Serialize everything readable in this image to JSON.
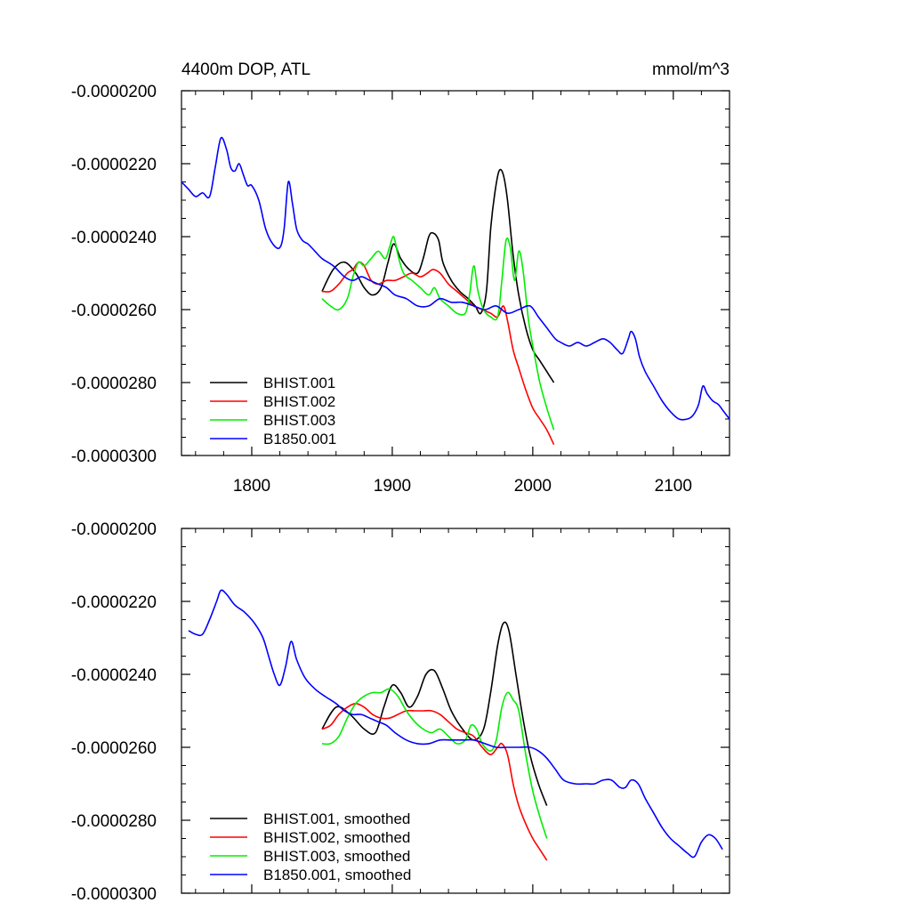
{
  "chart_data": [
    {
      "type": "line",
      "title": "4400m DOP, ATL",
      "units": "mmol/m^3",
      "xlim": [
        1750,
        2140
      ],
      "ylim": [
        -3e-05,
        -2e-05
      ],
      "xticks": [
        "1800",
        "1900",
        "2000",
        "2100"
      ],
      "yticks": [
        "-0.0000200",
        "-0.0000220",
        "-0.0000240",
        "-0.0000260",
        "-0.0000280",
        "-0.0000300"
      ],
      "legend_position": "bottom-left",
      "series": [
        {
          "name": "BHIST.001",
          "color": "#000000",
          "x": [
            1850,
            1858,
            1866,
            1874,
            1880,
            1886,
            1892,
            1897,
            1901,
            1906,
            1912,
            1918,
            1922,
            1926,
            1929,
            1933,
            1936,
            1942,
            1948,
            1954,
            1959,
            1963,
            1967,
            1970,
            1973,
            1976,
            1979,
            1982,
            1986,
            1990,
            1995,
            2000,
            2005,
            2010,
            2015
          ],
          "y": [
            -2.55e-05,
            -2.49e-05,
            -2.47e-05,
            -2.5e-05,
            -2.54e-05,
            -2.56e-05,
            -2.54e-05,
            -2.47e-05,
            -2.42e-05,
            -2.46e-05,
            -2.49e-05,
            -2.5e-05,
            -2.46e-05,
            -2.4e-05,
            -2.39e-05,
            -2.41e-05,
            -2.47e-05,
            -2.52e-05,
            -2.55e-05,
            -2.57e-05,
            -2.59e-05,
            -2.61e-05,
            -2.55e-05,
            -2.38e-05,
            -2.28e-05,
            -2.22e-05,
            -2.23e-05,
            -2.3e-05,
            -2.45e-05,
            -2.56e-05,
            -2.65e-05,
            -2.71e-05,
            -2.74e-05,
            -2.77e-05,
            -2.8e-05
          ]
        },
        {
          "name": "BHIST.002",
          "color": "#ff0000",
          "x": [
            1850,
            1856,
            1862,
            1868,
            1872,
            1876,
            1880,
            1885,
            1890,
            1896,
            1902,
            1908,
            1914,
            1920,
            1925,
            1929,
            1934,
            1940,
            1946,
            1952,
            1958,
            1964,
            1970,
            1975,
            1979,
            1982,
            1986,
            1990,
            1995,
            2000,
            2005,
            2010,
            2015
          ],
          "y": [
            -2.55e-05,
            -2.55e-05,
            -2.53e-05,
            -2.5e-05,
            -2.49e-05,
            -2.47e-05,
            -2.48e-05,
            -2.52e-05,
            -2.53e-05,
            -2.52e-05,
            -2.52e-05,
            -2.51e-05,
            -2.5e-05,
            -2.51e-05,
            -2.5e-05,
            -2.49e-05,
            -2.5e-05,
            -2.53e-05,
            -2.55e-05,
            -2.57e-05,
            -2.59e-05,
            -2.6e-05,
            -2.61e-05,
            -2.62e-05,
            -2.59e-05,
            -2.63e-05,
            -2.71e-05,
            -2.76e-05,
            -2.82e-05,
            -2.87e-05,
            -2.9e-05,
            -2.93e-05,
            -2.97e-05
          ]
        },
        {
          "name": "BHIST.003",
          "color": "#00ee00",
          "x": [
            1850,
            1856,
            1862,
            1868,
            1872,
            1876,
            1880,
            1885,
            1890,
            1895,
            1898,
            1901,
            1904,
            1908,
            1914,
            1920,
            1926,
            1930,
            1934,
            1940,
            1946,
            1952,
            1955,
            1958,
            1961,
            1965,
            1970,
            1975,
            1978,
            1981,
            1984,
            1987,
            1990,
            1993,
            1997,
            2001,
            2005,
            2010,
            2015
          ],
          "y": [
            -2.57e-05,
            -2.59e-05,
            -2.6e-05,
            -2.57e-05,
            -2.51e-05,
            -2.47e-05,
            -2.48e-05,
            -2.46e-05,
            -2.44e-05,
            -2.46e-05,
            -2.43e-05,
            -2.4e-05,
            -2.45e-05,
            -2.5e-05,
            -2.52e-05,
            -2.54e-05,
            -2.56e-05,
            -2.54e-05,
            -2.57e-05,
            -2.59e-05,
            -2.61e-05,
            -2.61e-05,
            -2.56e-05,
            -2.48e-05,
            -2.55e-05,
            -2.6e-05,
            -2.62e-05,
            -2.62e-05,
            -2.52e-05,
            -2.41e-05,
            -2.43e-05,
            -2.52e-05,
            -2.44e-05,
            -2.49e-05,
            -2.63e-05,
            -2.72e-05,
            -2.8e-05,
            -2.87e-05,
            -2.93e-05
          ]
        },
        {
          "name": "B1850.001",
          "color": "#0000ff",
          "x": [
            1750,
            1755,
            1760,
            1765,
            1770,
            1774,
            1778,
            1782,
            1785,
            1788,
            1791,
            1794,
            1797,
            1800,
            1805,
            1810,
            1815,
            1820,
            1823,
            1826,
            1829,
            1832,
            1836,
            1840,
            1845,
            1850,
            1858,
            1866,
            1872,
            1878,
            1884,
            1890,
            1896,
            1902,
            1910,
            1918,
            1926,
            1934,
            1942,
            1950,
            1958,
            1966,
            1974,
            1982,
            1990,
            1998,
            2004,
            2010,
            2016,
            2020,
            2026,
            2032,
            2038,
            2044,
            2050,
            2055,
            2060,
            2064,
            2068,
            2070,
            2073,
            2076,
            2080,
            2086,
            2092,
            2098,
            2104,
            2110,
            2114,
            2118,
            2121,
            2124,
            2128,
            2132,
            2136,
            2140
          ],
          "y": [
            -2.25e-05,
            -2.27e-05,
            -2.29e-05,
            -2.28e-05,
            -2.29e-05,
            -2.21e-05,
            -2.13e-05,
            -2.16e-05,
            -2.21e-05,
            -2.22e-05,
            -2.2e-05,
            -2.23e-05,
            -2.26e-05,
            -2.26e-05,
            -2.3e-05,
            -2.38e-05,
            -2.42e-05,
            -2.43e-05,
            -2.38e-05,
            -2.25e-05,
            -2.31e-05,
            -2.38e-05,
            -2.41e-05,
            -2.42e-05,
            -2.44e-05,
            -2.46e-05,
            -2.48e-05,
            -2.51e-05,
            -2.52e-05,
            -2.51e-05,
            -2.52e-05,
            -2.53e-05,
            -2.54e-05,
            -2.56e-05,
            -2.57e-05,
            -2.59e-05,
            -2.59e-05,
            -2.57e-05,
            -2.58e-05,
            -2.58e-05,
            -2.59e-05,
            -2.6e-05,
            -2.59e-05,
            -2.61e-05,
            -2.6e-05,
            -2.59e-05,
            -2.62e-05,
            -2.65e-05,
            -2.68e-05,
            -2.69e-05,
            -2.7e-05,
            -2.69e-05,
            -2.7e-05,
            -2.69e-05,
            -2.68e-05,
            -2.69e-05,
            -2.71e-05,
            -2.72e-05,
            -2.68e-05,
            -2.66e-05,
            -2.68e-05,
            -2.73e-05,
            -2.77e-05,
            -2.81e-05,
            -2.85e-05,
            -2.88e-05,
            -2.9e-05,
            -2.9e-05,
            -2.89e-05,
            -2.86e-05,
            -2.81e-05,
            -2.83e-05,
            -2.85e-05,
            -2.86e-05,
            -2.88e-05,
            -2.9e-05
          ]
        }
      ]
    },
    {
      "type": "line",
      "title": "",
      "xlim": [
        1750,
        2140
      ],
      "ylim": [
        -3e-05,
        -2e-05
      ],
      "xticks": [],
      "yticks": [
        "-0.0000200",
        "-0.0000220",
        "-0.0000240",
        "-0.0000260",
        "-0.0000280",
        "-0.0000300"
      ],
      "legend_position": "bottom-left",
      "series": [
        {
          "name": "BHIST.001, smoothed",
          "color": "#000000",
          "x": [
            1850,
            1860,
            1870,
            1880,
            1888,
            1894,
            1900,
            1906,
            1912,
            1918,
            1924,
            1930,
            1936,
            1942,
            1950,
            1958,
            1965,
            1970,
            1975,
            1979,
            1983,
            1988,
            1993,
            1998,
            2004,
            2010
          ],
          "y": [
            -2.55e-05,
            -2.49e-05,
            -2.51e-05,
            -2.55e-05,
            -2.56e-05,
            -2.49e-05,
            -2.43e-05,
            -2.45e-05,
            -2.49e-05,
            -2.46e-05,
            -2.4e-05,
            -2.39e-05,
            -2.44e-05,
            -2.5e-05,
            -2.55e-05,
            -2.58e-05,
            -2.55e-05,
            -2.45e-05,
            -2.32e-05,
            -2.26e-05,
            -2.28e-05,
            -2.4e-05,
            -2.52e-05,
            -2.62e-05,
            -2.7e-05,
            -2.76e-05
          ]
        },
        {
          "name": "BHIST.002, smoothed",
          "color": "#ff0000",
          "x": [
            1850,
            1856,
            1862,
            1868,
            1874,
            1880,
            1886,
            1892,
            1898,
            1904,
            1910,
            1916,
            1922,
            1928,
            1934,
            1940,
            1946,
            1952,
            1958,
            1964,
            1970,
            1975,
            1978,
            1982,
            1986,
            1990,
            1995,
            2000,
            2005,
            2010
          ],
          "y": [
            -2.55e-05,
            -2.54e-05,
            -2.51e-05,
            -2.49e-05,
            -2.48e-05,
            -2.49e-05,
            -2.51e-05,
            -2.52e-05,
            -2.52e-05,
            -2.51e-05,
            -2.5e-05,
            -2.5e-05,
            -2.5e-05,
            -2.5e-05,
            -2.51e-05,
            -2.53e-05,
            -2.55e-05,
            -2.56e-05,
            -2.57e-05,
            -2.6e-05,
            -2.62e-05,
            -2.6e-05,
            -2.59e-05,
            -2.62e-05,
            -2.7e-05,
            -2.76e-05,
            -2.81e-05,
            -2.85e-05,
            -2.88e-05,
            -2.91e-05
          ]
        },
        {
          "name": "BHIST.003, smoothed",
          "color": "#00ee00",
          "x": [
            1850,
            1856,
            1862,
            1868,
            1874,
            1880,
            1886,
            1892,
            1898,
            1904,
            1910,
            1916,
            1922,
            1928,
            1934,
            1940,
            1946,
            1952,
            1956,
            1960,
            1964,
            1970,
            1974,
            1978,
            1982,
            1986,
            1990,
            1995,
            2000,
            2005,
            2010
          ],
          "y": [
            -2.59e-05,
            -2.59e-05,
            -2.57e-05,
            -2.52e-05,
            -2.48e-05,
            -2.46e-05,
            -2.45e-05,
            -2.45e-05,
            -2.44e-05,
            -2.46e-05,
            -2.5e-05,
            -2.53e-05,
            -2.55e-05,
            -2.56e-05,
            -2.55e-05,
            -2.57e-05,
            -2.59e-05,
            -2.58e-05,
            -2.54e-05,
            -2.55e-05,
            -2.59e-05,
            -2.61e-05,
            -2.58e-05,
            -2.49e-05,
            -2.45e-05,
            -2.47e-05,
            -2.5e-05,
            -2.62e-05,
            -2.72e-05,
            -2.79e-05,
            -2.85e-05
          ]
        },
        {
          "name": "B1850.001, smoothed",
          "color": "#0000ff",
          "x": [
            1755,
            1760,
            1765,
            1770,
            1775,
            1778,
            1782,
            1788,
            1795,
            1802,
            1808,
            1812,
            1816,
            1820,
            1824,
            1828,
            1832,
            1838,
            1845,
            1852,
            1860,
            1866,
            1872,
            1878,
            1884,
            1890,
            1896,
            1902,
            1910,
            1918,
            1926,
            1934,
            1942,
            1950,
            1958,
            1966,
            1974,
            1982,
            1990,
            1998,
            2004,
            2010,
            2016,
            2022,
            2030,
            2038,
            2044,
            2050,
            2056,
            2062,
            2066,
            2070,
            2075,
            2080,
            2086,
            2092,
            2098,
            2104,
            2110,
            2115,
            2120,
            2125,
            2130,
            2135
          ],
          "y": [
            -2.28e-05,
            -2.29e-05,
            -2.29e-05,
            -2.25e-05,
            -2.2e-05,
            -2.17e-05,
            -2.18e-05,
            -2.21e-05,
            -2.23e-05,
            -2.26e-05,
            -2.3e-05,
            -2.35e-05,
            -2.4e-05,
            -2.43e-05,
            -2.38e-05,
            -2.31e-05,
            -2.36e-05,
            -2.41e-05,
            -2.44e-05,
            -2.46e-05,
            -2.48e-05,
            -2.5e-05,
            -2.51e-05,
            -2.51e-05,
            -2.52e-05,
            -2.53e-05,
            -2.54e-05,
            -2.56e-05,
            -2.58e-05,
            -2.59e-05,
            -2.59e-05,
            -2.58e-05,
            -2.58e-05,
            -2.58e-05,
            -2.58e-05,
            -2.59e-05,
            -2.6e-05,
            -2.6e-05,
            -2.6e-05,
            -2.6e-05,
            -2.61e-05,
            -2.63e-05,
            -2.66e-05,
            -2.69e-05,
            -2.7e-05,
            -2.7e-05,
            -2.7e-05,
            -2.69e-05,
            -2.69e-05,
            -2.71e-05,
            -2.71e-05,
            -2.69e-05,
            -2.7e-05,
            -2.74e-05,
            -2.78e-05,
            -2.82e-05,
            -2.85e-05,
            -2.87e-05,
            -2.89e-05,
            -2.9e-05,
            -2.86e-05,
            -2.84e-05,
            -2.85e-05,
            -2.88e-05
          ]
        }
      ]
    }
  ]
}
